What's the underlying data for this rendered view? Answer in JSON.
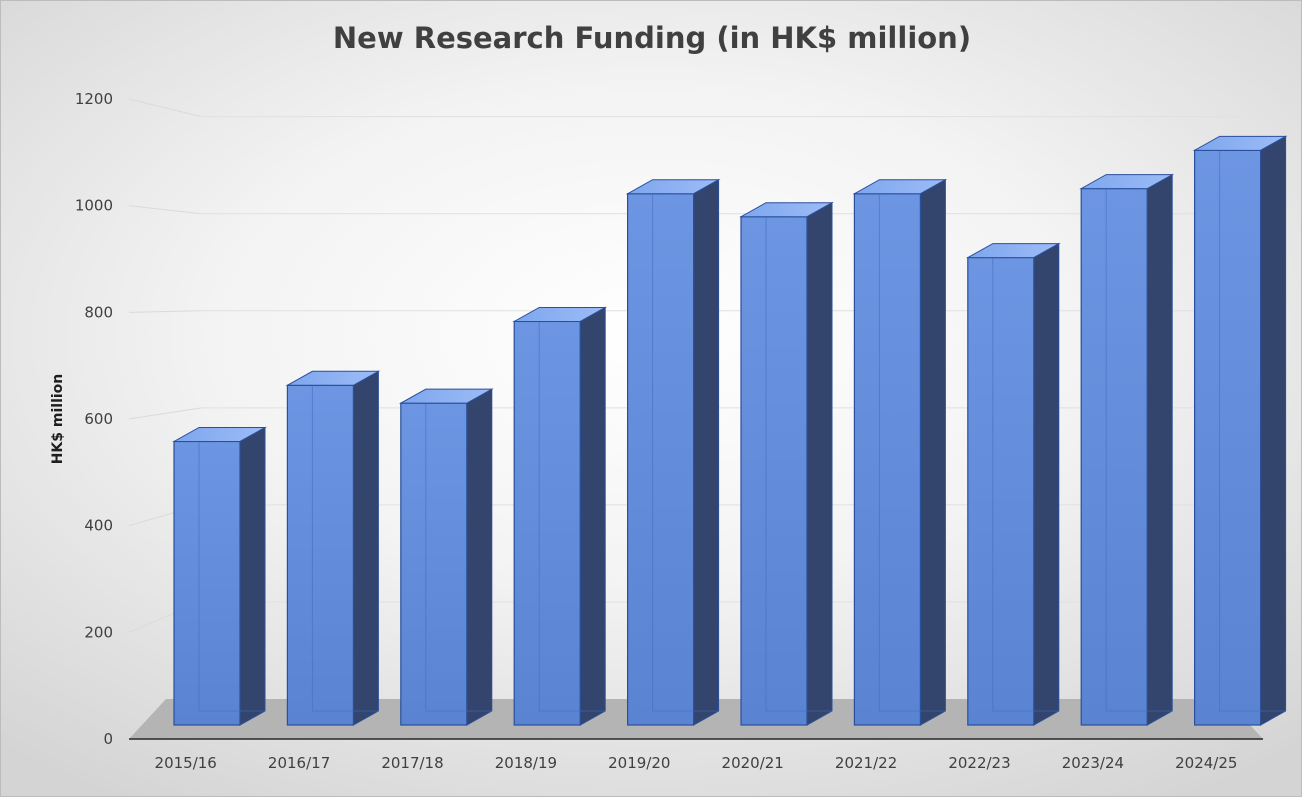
{
  "chart_data": {
    "type": "bar",
    "title": "New Research Funding (in HK$ million)",
    "xlabel": "",
    "ylabel": "HK$ million",
    "categories": [
      "2015/16",
      "2016/17",
      "2017/18",
      "2018/19",
      "2019/20",
      "2020/21",
      "2021/22",
      "2022/23",
      "2023/24",
      "2024/25"
    ],
    "values": [
      555,
      665,
      630,
      790,
      1040,
      995,
      1040,
      915,
      1050,
      1125
    ],
    "ylim": [
      0,
      1200
    ],
    "yticks": [
      "0",
      "200",
      "400",
      "600",
      "800",
      "1000",
      "1200"
    ],
    "grid": true,
    "legend": "none",
    "style": "3d-column",
    "colors": {
      "bar_face": "#5b86d4",
      "bar_top": "#8bb0f2",
      "bar_side": "#34456d",
      "bar_edge": "#2a4f9c",
      "floor": "#b4b4b4"
    }
  }
}
